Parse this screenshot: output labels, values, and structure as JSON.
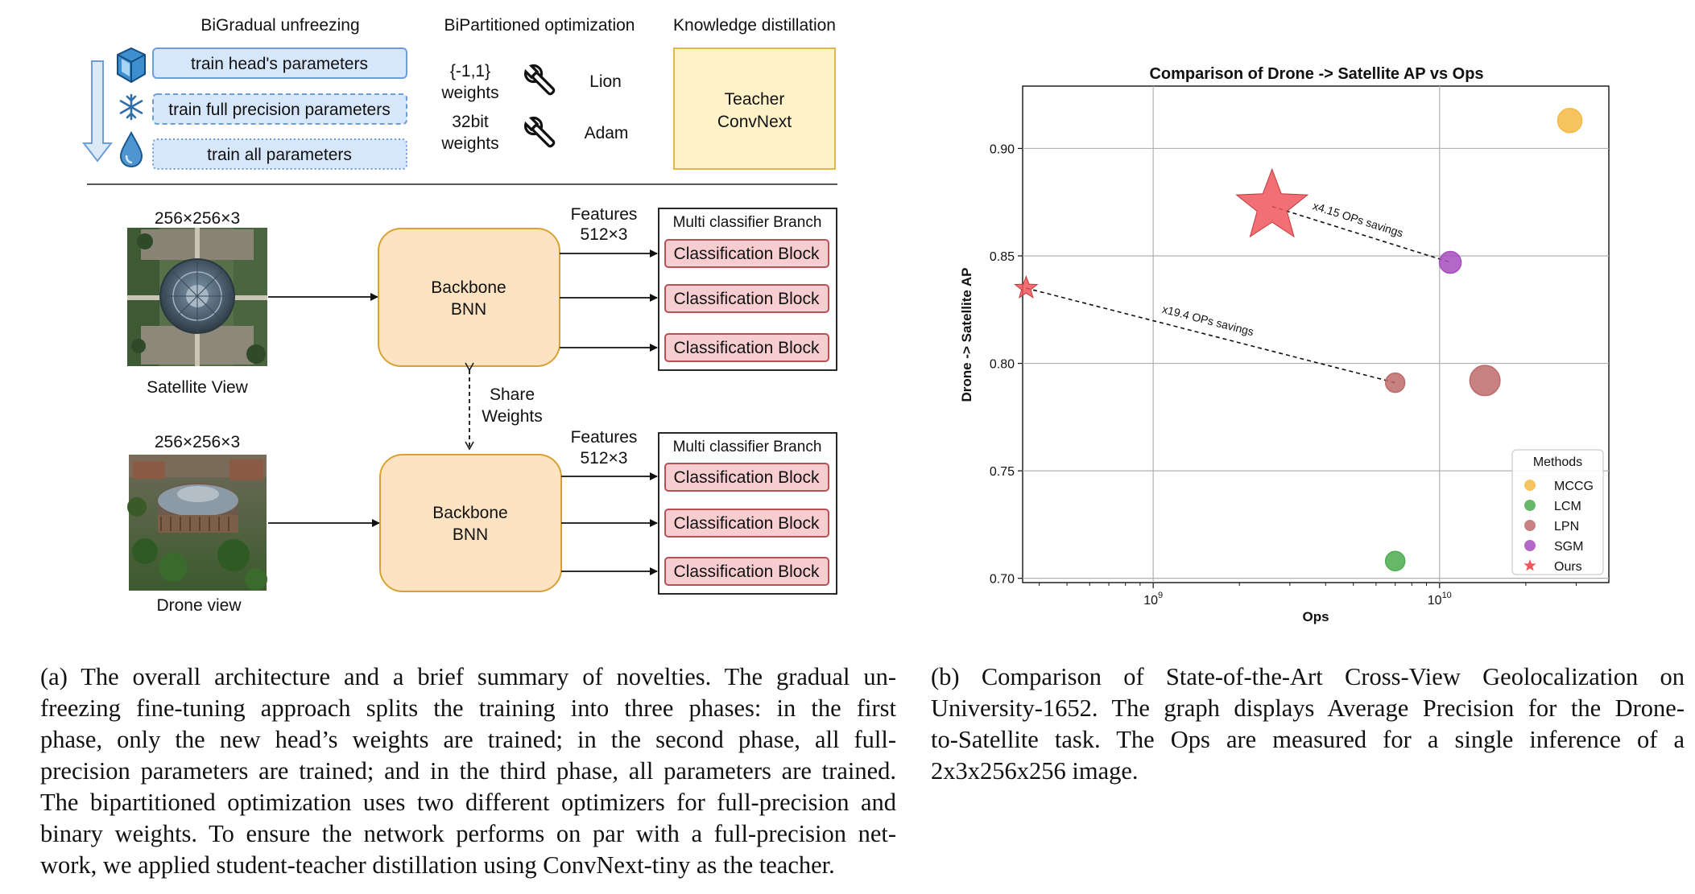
{
  "panel_a": {
    "headers": {
      "unfreezing": "BiGradual unfreezing",
      "optimization": "BiPartitioned optimization",
      "distillation": "Knowledge distillation"
    },
    "phases": [
      {
        "icon": "ice-cube-icon",
        "label": "train head's parameters"
      },
      {
        "icon": "snowflake-icon",
        "label": "train full precision parameters"
      },
      {
        "icon": "water-drop-icon",
        "label": "train all parameters"
      }
    ],
    "optimizers": [
      {
        "weights_l1": "{-1,1}",
        "weights_l2": "weights",
        "optimizer": "Lion"
      },
      {
        "weights_l1": "32bit",
        "weights_l2": "weights",
        "optimizer": "Adam"
      }
    ],
    "teacher": {
      "l1": "Teacher",
      "l2": "ConvNext"
    },
    "satellite": {
      "dims": "256×256×3",
      "label": "Satellite View"
    },
    "drone": {
      "dims": "256×256×3",
      "label": "Drone view"
    },
    "backbone": {
      "l1": "Backbone",
      "l2": "BNN"
    },
    "features": {
      "l1": "Features",
      "l2": "512×3"
    },
    "share_weights": {
      "l1": "Share",
      "l2": "Weights"
    },
    "branch_title": "Multi classifier Branch",
    "block_label": "Classification Block",
    "colors": {
      "phase_fill": "#d6e6fb",
      "phase_border": "#6d9ed8",
      "teacher_fill": "#fff2c8",
      "teacher_border": "#e0b94a",
      "backbone_fill": "#fde3c2",
      "backbone_border": "#d9a133",
      "block_fill": "#f7cdd0",
      "block_border": "#b85055"
    }
  },
  "chart_data": {
    "type": "scatter",
    "title": "Comparison of Drone -> Satellite  AP vs Ops",
    "xlabel": "Ops",
    "ylabel": "Drone -> Satellite AP",
    "xscale": "log",
    "xlim": [
      350000000.0,
      39000000000.0
    ],
    "ylim": [
      0.698,
      0.929
    ],
    "x_ticks": [
      {
        "base": "10",
        "exp": "9",
        "value": 1000000000.0
      },
      {
        "base": "10",
        "exp": "10",
        "value": 10000000000.0
      }
    ],
    "y_ticks": [
      "0.70",
      "0.75",
      "0.80",
      "0.85",
      "0.90"
    ],
    "grid": true,
    "legend": {
      "title": "Methods",
      "position": "lower right"
    },
    "series": [
      {
        "name": "MCCG",
        "marker": "circle",
        "color": "#f5b943",
        "points": [
          {
            "x": 28500000000.0,
            "y": 0.913,
            "size": 1.0
          }
        ]
      },
      {
        "name": "LCM",
        "marker": "circle",
        "color": "#4dac4f",
        "points": [
          {
            "x": 7000000000.0,
            "y": 0.708,
            "size": 0.8
          }
        ]
      },
      {
        "name": "LPN",
        "marker": "circle",
        "color": "#bd6b6b",
        "points": [
          {
            "x": 7000000000.0,
            "y": 0.791,
            "size": 0.8
          },
          {
            "x": 14400000000.0,
            "y": 0.792,
            "size": 1.25
          }
        ]
      },
      {
        "name": "SGM",
        "marker": "circle",
        "color": "#a64ebd",
        "points": [
          {
            "x": 10900000000.0,
            "y": 0.847,
            "size": 0.9
          }
        ]
      },
      {
        "name": "Ours",
        "marker": "star",
        "color": "#f0565a",
        "points": [
          {
            "x": 360000000.0,
            "y": 0.835,
            "size": 0.5
          },
          {
            "x": 2600000000.0,
            "y": 0.873,
            "size": 1.6
          }
        ]
      }
    ],
    "annotations": [
      {
        "text": "x4.15 OPs savings",
        "from": {
          "x": 2600000000.0,
          "y": 0.873
        },
        "to": {
          "x": 10900000000.0,
          "y": 0.847
        }
      },
      {
        "text": "x19.4 OPs savings",
        "from": {
          "x": 360000000.0,
          "y": 0.835
        },
        "to": {
          "x": 7000000000.0,
          "y": 0.791
        }
      }
    ]
  },
  "captions": {
    "a_lines": [
      "(a) The overall architecture and a brief summary of novelties.  The gradual un-",
      "freezing fine-tuning approach splits the training into three phases:  in the first",
      "phase, only the new head’s weights are trained; in the second phase, all full-",
      "precision parameters are trained; and in the third phase, all parameters are trained.",
      "The bipartitioned optimization uses two different optimizers for full-precision and",
      "binary weights.  To ensure the network performs on par with a full-precision net-",
      "work, we applied student-teacher distillation using ConvNext-tiny as the teacher."
    ],
    "b_lines": [
      "(b) Comparison of State-of-the-Art Cross-View Geolocalization on",
      "University-1652. The graph displays Average Precision for the Drone-",
      "to-Satellite task.  The Ops are measured for a single inference of a",
      "2x3x256x256 image."
    ]
  }
}
